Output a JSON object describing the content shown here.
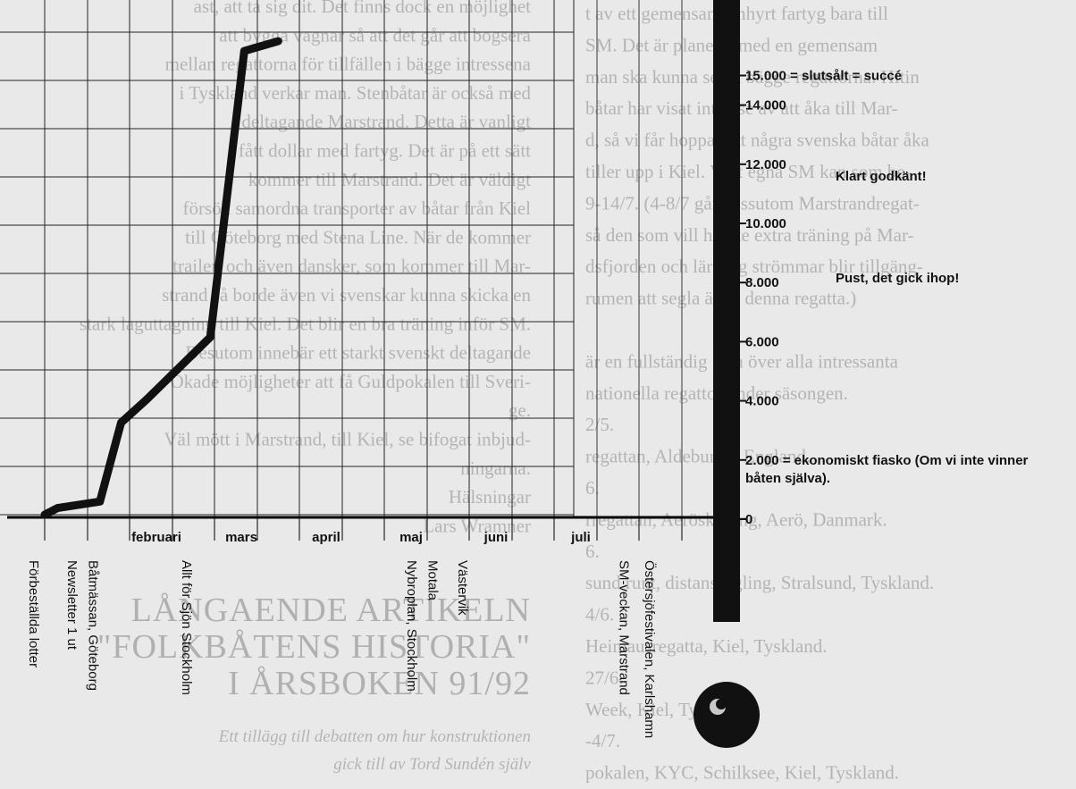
{
  "chart_data": {
    "type": "line",
    "months": [
      "februari",
      "mars",
      "april",
      "maj",
      "juni",
      "juli"
    ],
    "events": [
      {
        "label": "Förbeställda lotter",
        "month_pos": 0.0
      },
      {
        "label": "Newsletter 1 ut",
        "month_pos": 0.45
      },
      {
        "label": "Båtmässan, Göteborg",
        "month_pos": 0.7
      },
      {
        "label": "Allt för Sjön Stockholm",
        "month_pos": 1.8
      },
      {
        "label": "Nybroplan, Stockholm",
        "month_pos": 4.45
      },
      {
        "label": "Motala",
        "month_pos": 4.7
      },
      {
        "label": "Västervik",
        "month_pos": 5.05
      },
      {
        "label": "SM-veckan, Marstrand",
        "month_pos": 6.95
      },
      {
        "label": "Östersjöfestivalen, Karlshamn",
        "month_pos": 7.25
      }
    ],
    "progress_line": [
      {
        "x": 0.0,
        "y": 0
      },
      {
        "x": 0.15,
        "y": 200
      },
      {
        "x": 0.65,
        "y": 400
      },
      {
        "x": 0.9,
        "y": 2800
      },
      {
        "x": 1.2,
        "y": 3500
      },
      {
        "x": 1.95,
        "y": 5400
      },
      {
        "x": 2.35,
        "y": 14100
      },
      {
        "x": 2.75,
        "y": 14400
      }
    ],
    "thermometer": {
      "ticks": [
        {
          "value": 0,
          "label": "0"
        },
        {
          "value": 2000,
          "label": "2.000 = ekonomiskt fiasko (Om vi inte vinner"
        },
        {
          "value": 4000,
          "label": "4.000"
        },
        {
          "value": 6000,
          "label": "6.000"
        },
        {
          "value": 8000,
          "label": "8.000"
        },
        {
          "value": 10000,
          "label": "10.000"
        },
        {
          "value": 12000,
          "label": "12.000"
        },
        {
          "value": 14000,
          "label": "14.000"
        },
        {
          "value": 15000,
          "label": "15.000 = slutsålt = succé"
        }
      ],
      "tick2000_line2": "båten själva).",
      "notes": [
        {
          "value": 8150,
          "label": "Pust, det gick ihop!"
        },
        {
          "value": 11600,
          "label": "Klart godkänt!"
        }
      ]
    }
  },
  "background_text": {
    "left_lines": [
      "ast, att ta sig dit. Det finns dock en möjlighet",
      "att bygga vagnar så att det går att bogsera",
      "mellan regattorna för tillfällen i bägge intressena",
      "i Tyskland verkar man. Stenbåtar är också med",
      "deltagande Marstrand. Detta är vanligt",
      "fått dollar med fartyg. Det är på ett sätt",
      "kommer till Marstrand. Det är väldigt",
      "försök samordna transporter av båtar från Kiel",
      "till Göteborg med Stena Line. När de kommer",
      "trailer, och även dansker, som kommer till Mar-",
      "strand så borde även vi svenskar kunna skicka en",
      "stark laguttagning till Kiel. Det blir en bra träning inför SM.",
      "Desutom innebär ett starkt svenskt deltagande",
      "Ökade möjligheter att få Guldpokalen till Sveri-",
      "ge.",
      "Väl mött i Marstrand, till Kiel, se bifogat inbjud-",
      "ningarna.",
      "Hälsningar",
      "Lars Wramner"
    ],
    "article_title": [
      "LÅNGAENDE ARTIKELN",
      "\"FOLKBÅTENS HISTORIA\"",
      "I ÅRSBOKEN 91/92"
    ],
    "article_sub": [
      "Ett tillägg till debatten om hur konstruktionen",
      "gick till av Tord Sundén själv"
    ],
    "right_lines": [
      "t av ett gemensamt inhyrt fartyg bara till",
      "SM. Det är planerat med en gemensam",
      "man ska kunna segla bägge regattorna. Hitin",
      "båtar har visat intresse av att åka till Mar-",
      "d, så vi får hoppas att några svenska båtar åka",
      "tiller upp i Kiel. Vårt egna SM kan som be-",
      "9-14/7. (4-8/7 går dessutom Marstrandregat-",
      "så den som vill ha lite extra träning på Mar-",
      "dsfjorden och lära sig strömmar blir tillgäng-",
      "rumen att segla även denna regatta.)",
      "",
      "är en fullständig lista över alla intressanta",
      "nationella regattor under säsongen.",
      "2/5.",
      "regattan, Aldeburgh, England.",
      "6.",
      "rregattan, Aerösköping, Aerö, Danmark.",
      "6.",
      "sund runt, distanssegling, Stralsund, Tyskland.",
      "4/6.",
      "Heimausregatta, Kiel, Tyskland.",
      "27/6.",
      "Week, Kiel, Tyskland.",
      "-4/7.",
      "pokalen, KYC, Schilksee, Kiel, Tyskland."
    ]
  }
}
